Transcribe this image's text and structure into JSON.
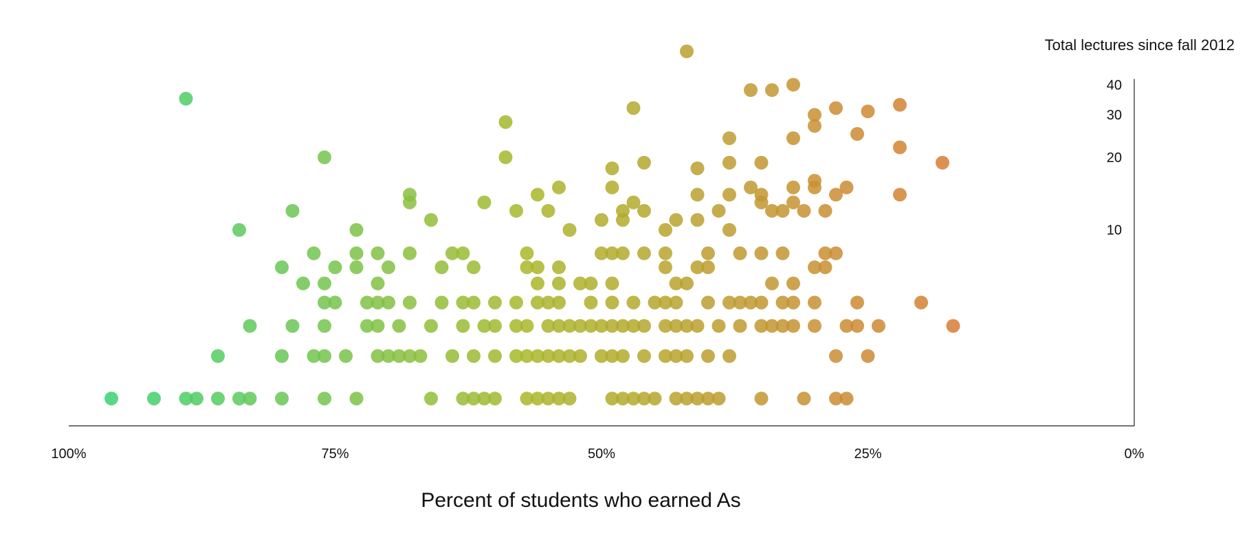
{
  "chart_data": {
    "type": "scatter",
    "xlabel": "Percent of students who earned As",
    "ylabel": "Total lectures since fall 2012",
    "x_axis": {
      "reversed": true,
      "xlim": [
        0,
        100
      ],
      "unit": "%"
    },
    "y_axis": {
      "scale": "log",
      "ylim": [
        1.7,
        56
      ]
    },
    "x_ticks": [
      {
        "value": 100,
        "label": "100%"
      },
      {
        "value": 75,
        "label": "75%"
      },
      {
        "value": 50,
        "label": "50%"
      },
      {
        "value": 25,
        "label": "25%"
      },
      {
        "value": 0,
        "label": "0%"
      }
    ],
    "y_ticks": [
      {
        "value": 10,
        "label": "10"
      },
      {
        "value": 20,
        "label": "20"
      },
      {
        "value": 30,
        "label": "30"
      },
      {
        "value": 40,
        "label": "40"
      }
    ],
    "grid": false,
    "color_scale": {
      "high_pct_color": "#2ed47a",
      "mid_pct_color": "#a8b82a",
      "low_pct_color": "#d97a35"
    },
    "points": [
      [
        96,
        2
      ],
      [
        92,
        2
      ],
      [
        89,
        2
      ],
      [
        88,
        2
      ],
      [
        86,
        2
      ],
      [
        84,
        2
      ],
      [
        83,
        2
      ],
      [
        80,
        2
      ],
      [
        76,
        2
      ],
      [
        73,
        2
      ],
      [
        66,
        2
      ],
      [
        63,
        2
      ],
      [
        62,
        2
      ],
      [
        61,
        2
      ],
      [
        60,
        2
      ],
      [
        57,
        2
      ],
      [
        56,
        2
      ],
      [
        55,
        2
      ],
      [
        54,
        2
      ],
      [
        53,
        2
      ],
      [
        49,
        2
      ],
      [
        48,
        2
      ],
      [
        47,
        2
      ],
      [
        46,
        2
      ],
      [
        45,
        2
      ],
      [
        43,
        2
      ],
      [
        42,
        2
      ],
      [
        41,
        2
      ],
      [
        40,
        2
      ],
      [
        39,
        2
      ],
      [
        35,
        2
      ],
      [
        31,
        2
      ],
      [
        28,
        2
      ],
      [
        27,
        2
      ],
      [
        86,
        3
      ],
      [
        80,
        3
      ],
      [
        77,
        3
      ],
      [
        76,
        3
      ],
      [
        74,
        3
      ],
      [
        71,
        3
      ],
      [
        70,
        3
      ],
      [
        69,
        3
      ],
      [
        68,
        3
      ],
      [
        67,
        3
      ],
      [
        64,
        3
      ],
      [
        62,
        3
      ],
      [
        60,
        3
      ],
      [
        58,
        3
      ],
      [
        57,
        3
      ],
      [
        56,
        3
      ],
      [
        55,
        3
      ],
      [
        54,
        3
      ],
      [
        53,
        3
      ],
      [
        52,
        3
      ],
      [
        50,
        3
      ],
      [
        49,
        3
      ],
      [
        48,
        3
      ],
      [
        46,
        3
      ],
      [
        44,
        3
      ],
      [
        43,
        3
      ],
      [
        42,
        3
      ],
      [
        40,
        3
      ],
      [
        38,
        3
      ],
      [
        28,
        3
      ],
      [
        25,
        3
      ],
      [
        83,
        4
      ],
      [
        79,
        4
      ],
      [
        76,
        4
      ],
      [
        72,
        4
      ],
      [
        71,
        4
      ],
      [
        69,
        4
      ],
      [
        66,
        4
      ],
      [
        63,
        4
      ],
      [
        61,
        4
      ],
      [
        60,
        4
      ],
      [
        58,
        4
      ],
      [
        57,
        4
      ],
      [
        55,
        4
      ],
      [
        54,
        4
      ],
      [
        53,
        4
      ],
      [
        52,
        4
      ],
      [
        51,
        4
      ],
      [
        50,
        4
      ],
      [
        49,
        4
      ],
      [
        48,
        4
      ],
      [
        47,
        4
      ],
      [
        46,
        4
      ],
      [
        44,
        4
      ],
      [
        43,
        4
      ],
      [
        42,
        4
      ],
      [
        41,
        4
      ],
      [
        39,
        4
      ],
      [
        37,
        4
      ],
      [
        35,
        4
      ],
      [
        34,
        4
      ],
      [
        33,
        4
      ],
      [
        32,
        4
      ],
      [
        30,
        4
      ],
      [
        27,
        4
      ],
      [
        26,
        4
      ],
      [
        24,
        4
      ],
      [
        17,
        4
      ],
      [
        76,
        5
      ],
      [
        75,
        5
      ],
      [
        72,
        5
      ],
      [
        71,
        5
      ],
      [
        70,
        5
      ],
      [
        68,
        5
      ],
      [
        65,
        5
      ],
      [
        63,
        5
      ],
      [
        62,
        5
      ],
      [
        60,
        5
      ],
      [
        58,
        5
      ],
      [
        56,
        5
      ],
      [
        55,
        5
      ],
      [
        54,
        5
      ],
      [
        51,
        5
      ],
      [
        49,
        5
      ],
      [
        47,
        5
      ],
      [
        45,
        5
      ],
      [
        44,
        5
      ],
      [
        43,
        5
      ],
      [
        40,
        5
      ],
      [
        38,
        5
      ],
      [
        37,
        5
      ],
      [
        36,
        5
      ],
      [
        35,
        5
      ],
      [
        33,
        5
      ],
      [
        32,
        5
      ],
      [
        30,
        5
      ],
      [
        26,
        5
      ],
      [
        20,
        5
      ],
      [
        78,
        6
      ],
      [
        76,
        6
      ],
      [
        71,
        6
      ],
      [
        56,
        6
      ],
      [
        54,
        6
      ],
      [
        52,
        6
      ],
      [
        51,
        6
      ],
      [
        49,
        6
      ],
      [
        43,
        6
      ],
      [
        42,
        6
      ],
      [
        34,
        6
      ],
      [
        32,
        6
      ],
      [
        80,
        7
      ],
      [
        75,
        7
      ],
      [
        73,
        7
      ],
      [
        70,
        7
      ],
      [
        65,
        7
      ],
      [
        62,
        7
      ],
      [
        57,
        7
      ],
      [
        56,
        7
      ],
      [
        54,
        7
      ],
      [
        44,
        7
      ],
      [
        41,
        7
      ],
      [
        40,
        7
      ],
      [
        30,
        7
      ],
      [
        29,
        7
      ],
      [
        77,
        8
      ],
      [
        73,
        8
      ],
      [
        71,
        8
      ],
      [
        68,
        8
      ],
      [
        64,
        8
      ],
      [
        63,
        8
      ],
      [
        57,
        8
      ],
      [
        50,
        8
      ],
      [
        49,
        8
      ],
      [
        48,
        8
      ],
      [
        46,
        8
      ],
      [
        44,
        8
      ],
      [
        40,
        8
      ],
      [
        37,
        8
      ],
      [
        35,
        8
      ],
      [
        33,
        8
      ],
      [
        29,
        8
      ],
      [
        28,
        8
      ],
      [
        84,
        10
      ],
      [
        73,
        10
      ],
      [
        53,
        10
      ],
      [
        44,
        10
      ],
      [
        38,
        10
      ],
      [
        66,
        11
      ],
      [
        50,
        11
      ],
      [
        48,
        11
      ],
      [
        43,
        11
      ],
      [
        41,
        11
      ],
      [
        79,
        12
      ],
      [
        58,
        12
      ],
      [
        55,
        12
      ],
      [
        48,
        12
      ],
      [
        46,
        12
      ],
      [
        39,
        12
      ],
      [
        34,
        12
      ],
      [
        33,
        12
      ],
      [
        31,
        12
      ],
      [
        29,
        12
      ],
      [
        68,
        13
      ],
      [
        61,
        13
      ],
      [
        47,
        13
      ],
      [
        35,
        13
      ],
      [
        32,
        13
      ],
      [
        68,
        14
      ],
      [
        56,
        14
      ],
      [
        41,
        14
      ],
      [
        38,
        14
      ],
      [
        35,
        14
      ],
      [
        28,
        14
      ],
      [
        22,
        14
      ],
      [
        54,
        15
      ],
      [
        49,
        15
      ],
      [
        36,
        15
      ],
      [
        32,
        15
      ],
      [
        30,
        15
      ],
      [
        27,
        15
      ],
      [
        30,
        16
      ],
      [
        49,
        18
      ],
      [
        41,
        18
      ],
      [
        76,
        20
      ],
      [
        59,
        20
      ],
      [
        46,
        19
      ],
      [
        38,
        19
      ],
      [
        35,
        19
      ],
      [
        18,
        19
      ],
      [
        22,
        22
      ],
      [
        38,
        24
      ],
      [
        32,
        24
      ],
      [
        26,
        25
      ],
      [
        59,
        28
      ],
      [
        30,
        27
      ],
      [
        89,
        35
      ],
      [
        47,
        32
      ],
      [
        30,
        30
      ],
      [
        28,
        32
      ],
      [
        25,
        31
      ],
      [
        22,
        33
      ],
      [
        36,
        38
      ],
      [
        34,
        38
      ],
      [
        32,
        40
      ],
      [
        42,
        55
      ]
    ]
  }
}
